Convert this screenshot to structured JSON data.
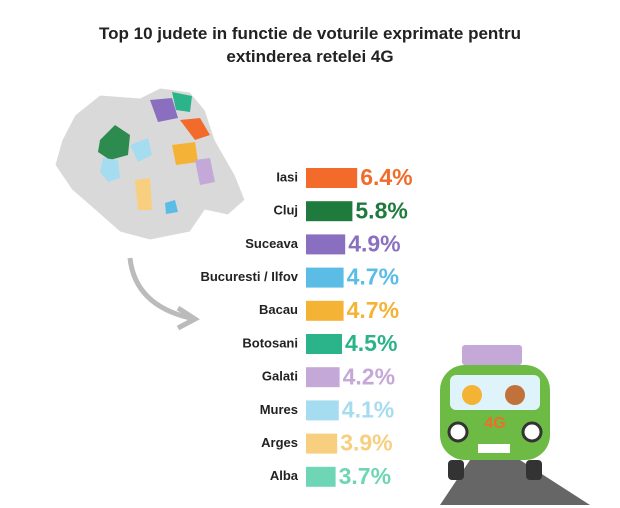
{
  "chart_data": {
    "type": "bar",
    "orientation": "horizontal",
    "title": "Top 10 judete in functie de voturile exprimate pentru extinderea retelei 4G",
    "categories": [
      "Iasi",
      "Cluj",
      "Suceava",
      "Bucuresti / Ilfov",
      "Bacau",
      "Botosani",
      "Galati",
      "Mures",
      "Arges",
      "Alba"
    ],
    "values": [
      6.4,
      5.8,
      4.9,
      4.7,
      4.7,
      4.5,
      4.2,
      4.1,
      3.9,
      3.7
    ],
    "value_labels": [
      "6.4%",
      "5.8%",
      "4.9%",
      "4.7%",
      "4.7%",
      "4.5%",
      "4.2%",
      "4.1%",
      "3.9%",
      "3.7%"
    ],
    "colors": [
      "#f26b2a",
      "#1f7a3e",
      "#8a6fc0",
      "#5bbde6",
      "#f5b335",
      "#2bb38a",
      "#c3a8d8",
      "#a6dcf0",
      "#f7cf7e",
      "#6fd6b5"
    ]
  },
  "van_label": "4G"
}
